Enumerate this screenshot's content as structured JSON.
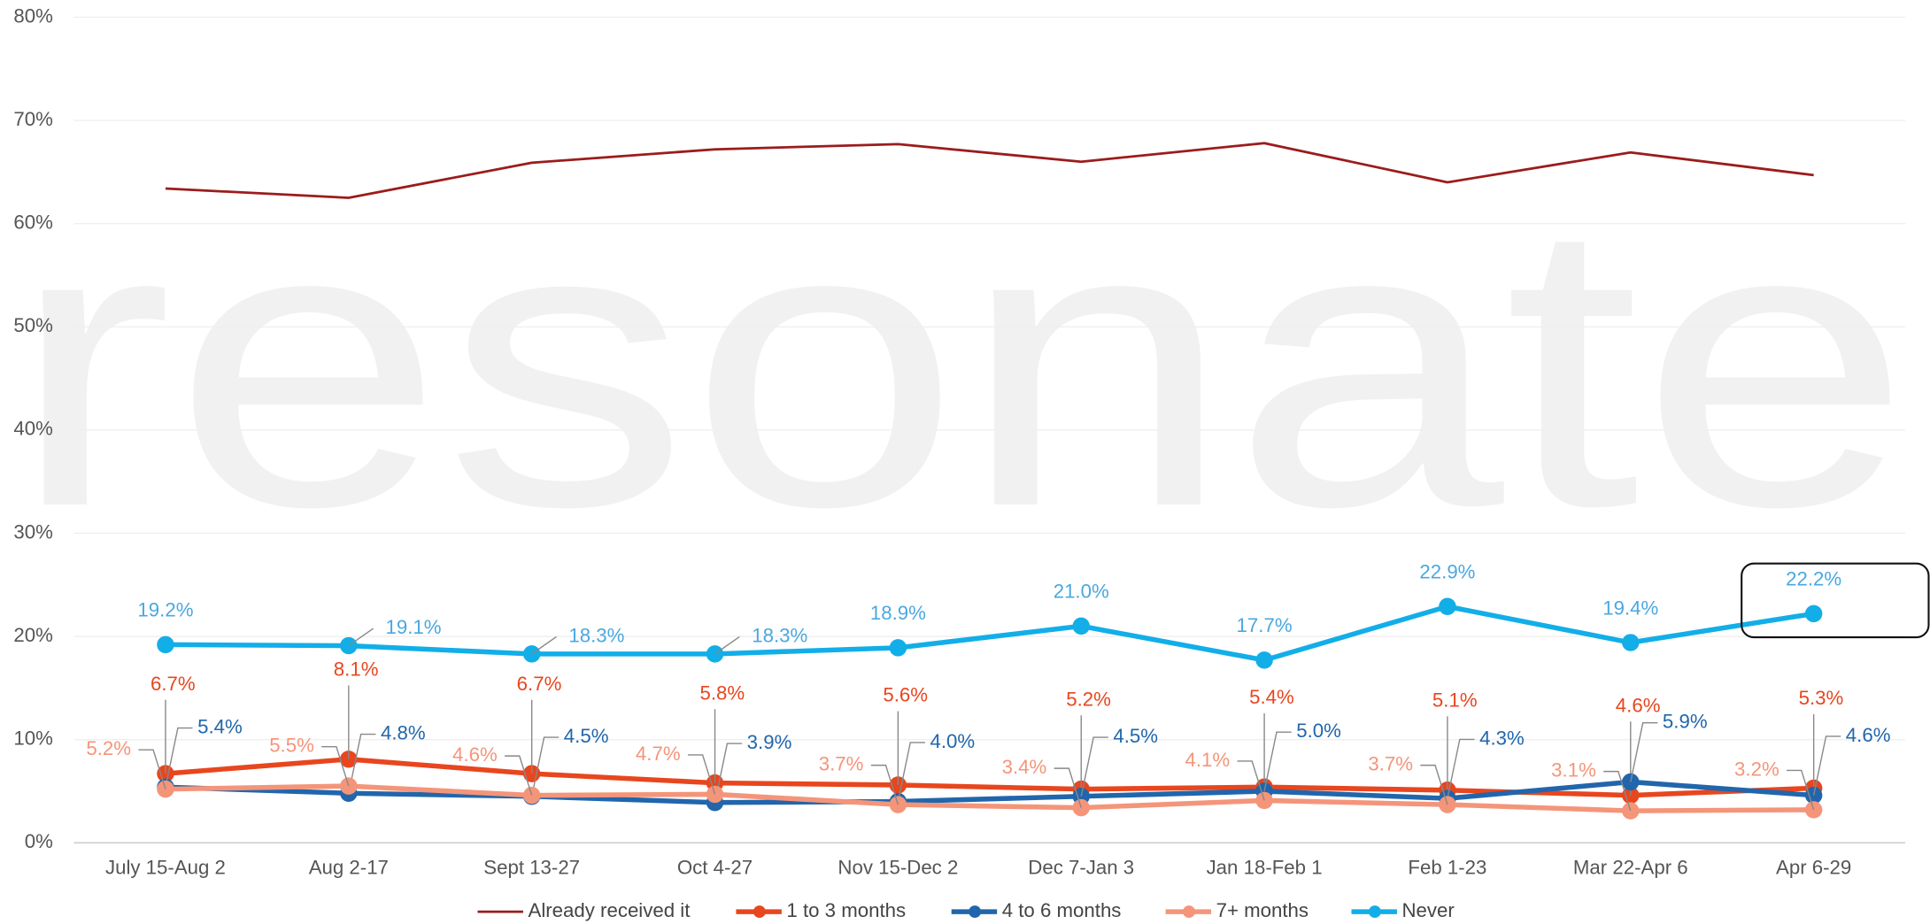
{
  "chart_data": {
    "type": "line",
    "watermark": "resonate",
    "categories": [
      "July 15-Aug 2",
      "Aug 2-17",
      "Sept 13-27",
      "Oct 4-27",
      "Nov 15-Dec 2",
      "Dec 7-Jan 3",
      "Jan 18-Feb 1",
      "Feb 1-23",
      "Mar 22-Apr 6",
      "Apr 6-29"
    ],
    "ylim": [
      0,
      80
    ],
    "yticks": [
      {
        "value": 0,
        "label": "0%"
      },
      {
        "value": 10,
        "label": "10%"
      },
      {
        "value": 20,
        "label": "20%"
      },
      {
        "value": 30,
        "label": "30%"
      },
      {
        "value": 40,
        "label": "40%"
      },
      {
        "value": 50,
        "label": "50%"
      },
      {
        "value": 60,
        "label": "60%"
      },
      {
        "value": 70,
        "label": "70%"
      },
      {
        "value": 80,
        "label": "80%"
      }
    ],
    "grid": true,
    "legend": "bottom",
    "series": [
      {
        "name": "Already received it",
        "color": "#9b1c1c",
        "values": [
          63.4,
          62.5,
          65.9,
          67.2,
          67.7,
          66.0,
          67.8,
          64.0,
          66.9,
          64.7
        ]
      },
      {
        "name": "1 to 3 months",
        "color": "#e8461e",
        "values": [
          6.7,
          8.1,
          6.7,
          5.8,
          5.6,
          5.2,
          5.4,
          5.1,
          4.6,
          5.3
        ],
        "value_labels": [
          "6.7%",
          "8.1%",
          "6.7%",
          "5.8%",
          "5.6%",
          "5.2%",
          "5.4%",
          "5.1%",
          "4.6%",
          "5.3%"
        ]
      },
      {
        "name": "4 to 6 months",
        "color": "#2166ac",
        "values": [
          5.4,
          4.8,
          4.5,
          3.9,
          4.0,
          4.5,
          5.0,
          4.3,
          5.9,
          4.6
        ],
        "value_labels": [
          "5.4%",
          "4.8%",
          "4.5%",
          "3.9%",
          "4.0%",
          "4.5%",
          "5.0%",
          "4.3%",
          "5.9%",
          "4.6%"
        ]
      },
      {
        "name": "7+ months",
        "color": "#f4957a",
        "values": [
          5.2,
          5.5,
          4.6,
          4.7,
          3.7,
          3.4,
          4.1,
          3.7,
          3.1,
          3.2
        ],
        "value_labels": [
          "5.2%",
          "5.5%",
          "4.6%",
          "4.7%",
          "3.7%",
          "3.4%",
          "4.1%",
          "3.7%",
          "3.1%",
          "3.2%"
        ]
      },
      {
        "name": "Never",
        "color": "#12aee8",
        "values": [
          19.2,
          19.1,
          18.3,
          18.3,
          18.9,
          21.0,
          17.7,
          22.9,
          19.4,
          22.2
        ],
        "value_labels": [
          "19.2%",
          "19.1%",
          "18.3%",
          "18.3%",
          "18.9%",
          "21.0%",
          "17.7%",
          "22.9%",
          "19.4%",
          "22.2%"
        ]
      }
    ]
  }
}
